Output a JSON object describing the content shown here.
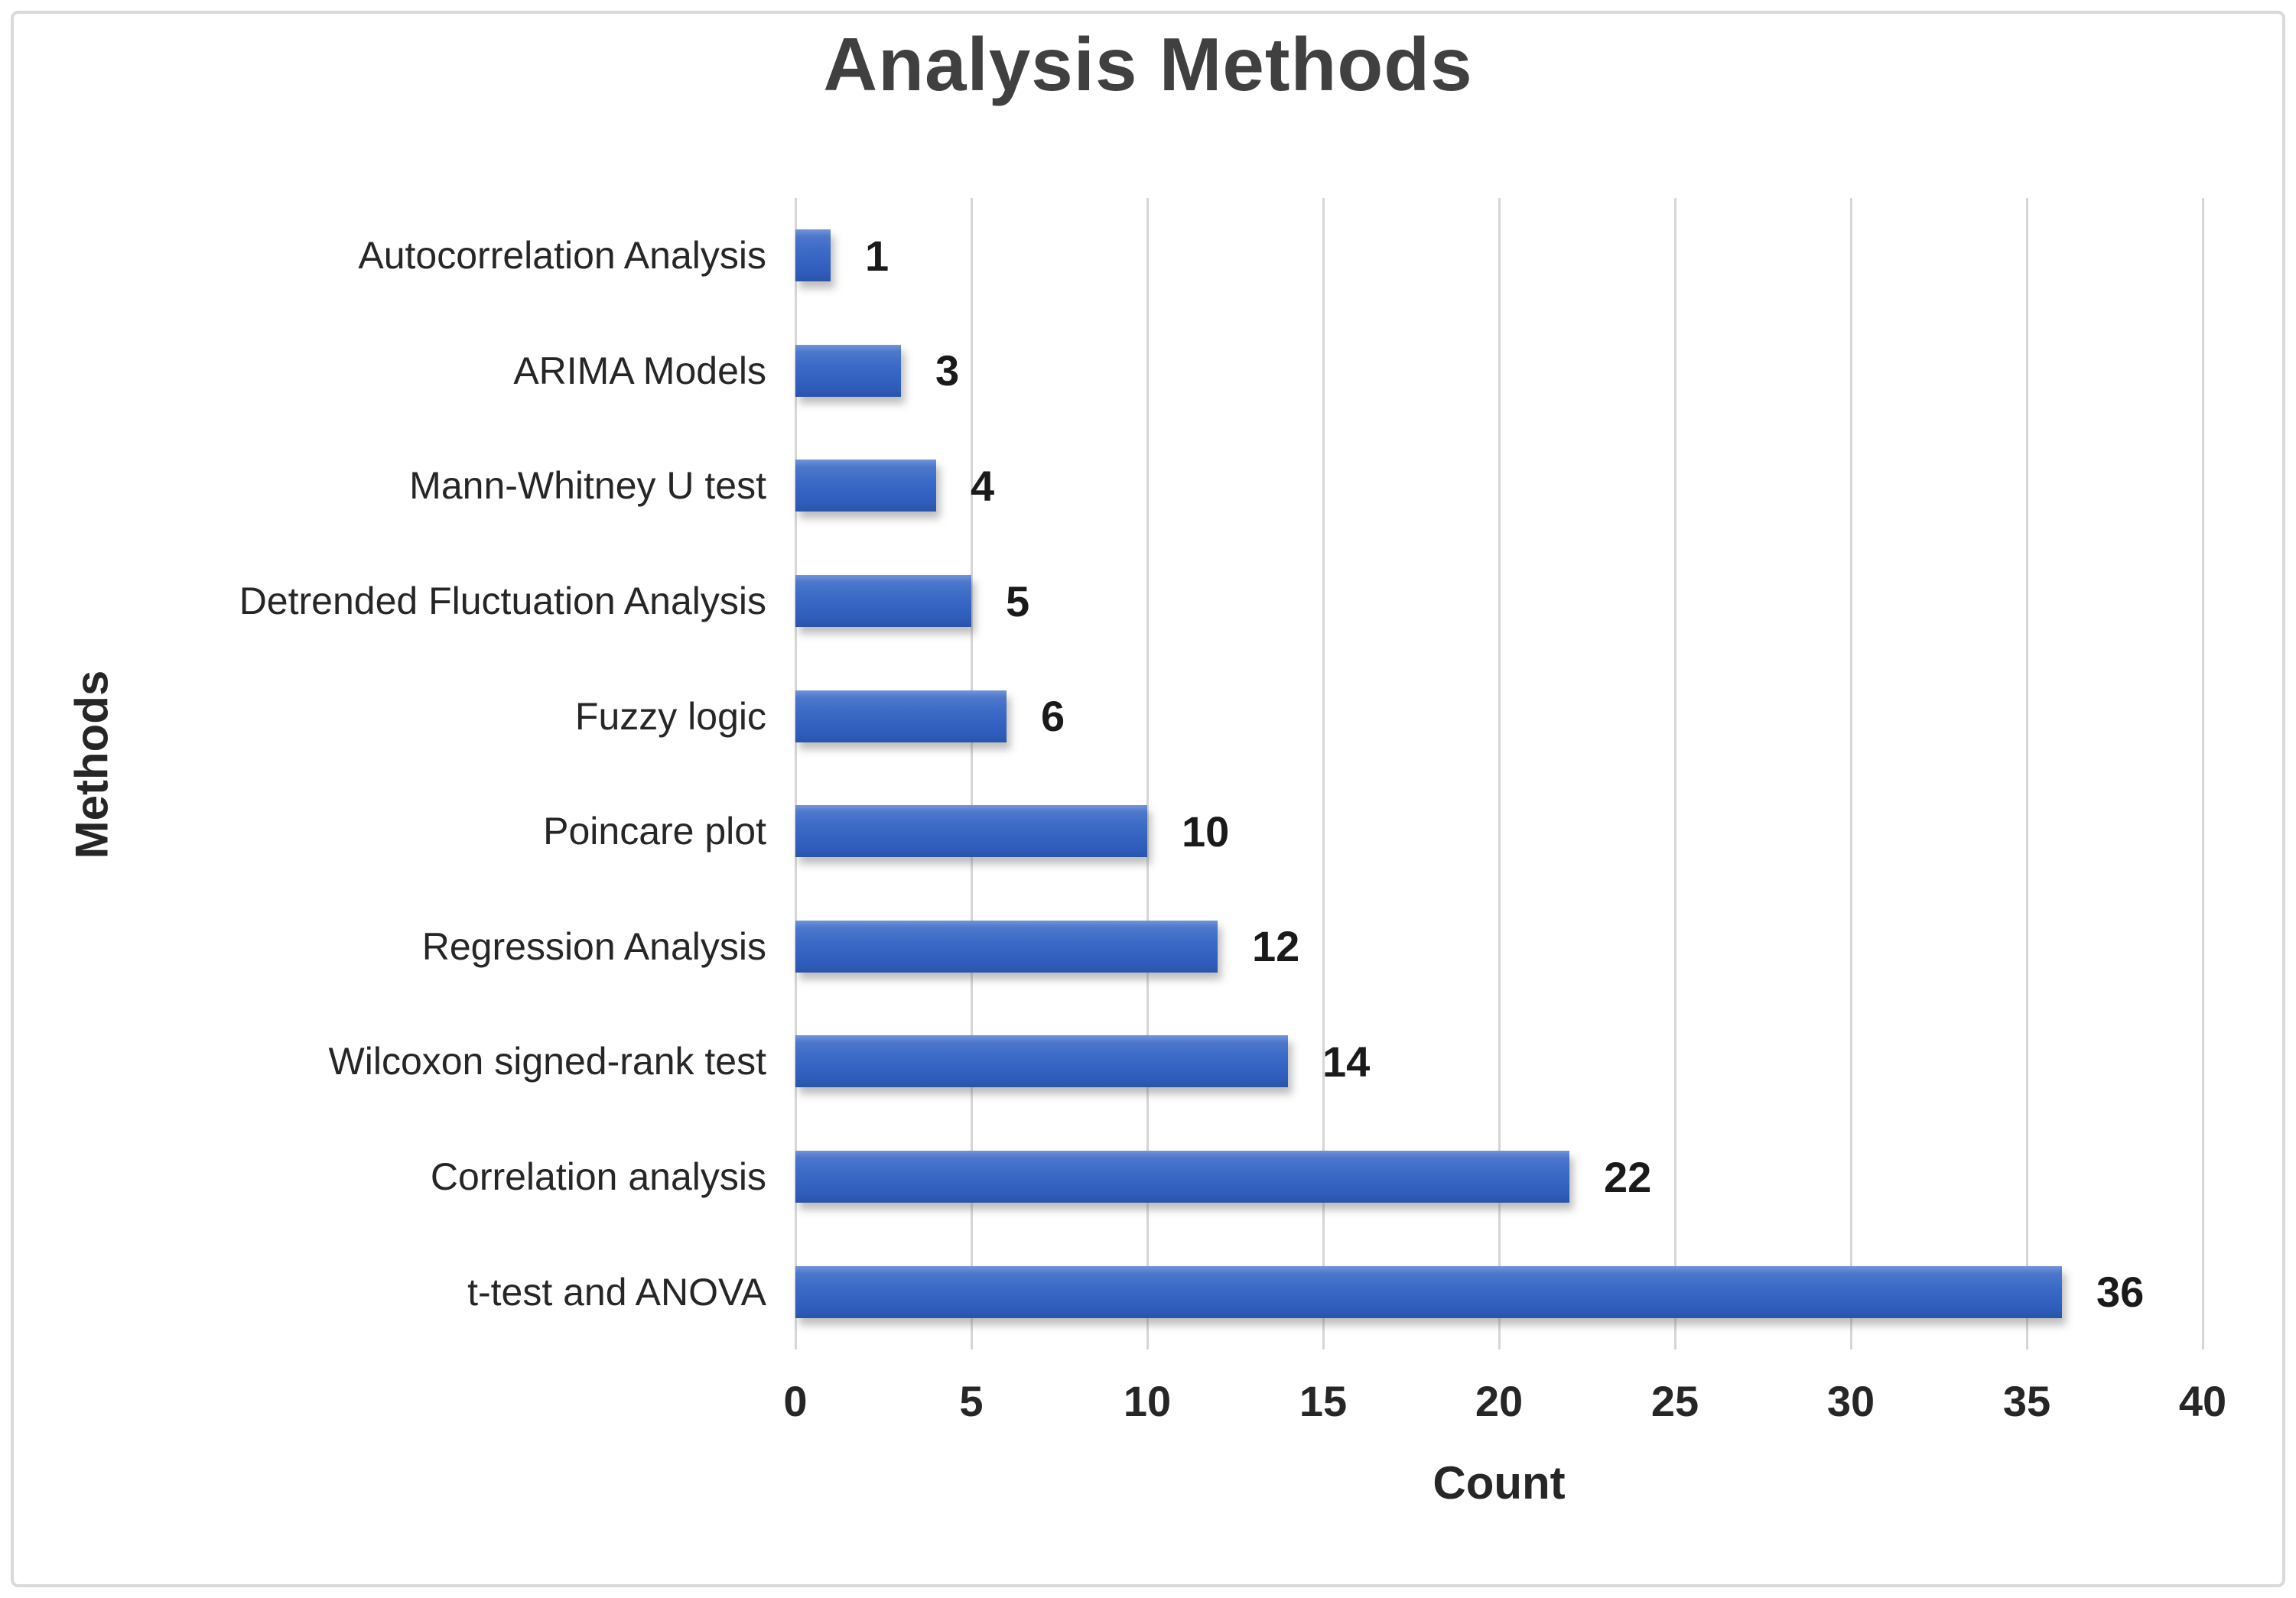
{
  "chart_data": {
    "type": "bar",
    "orientation": "horizontal",
    "title": "Analysis Methods",
    "xlabel": "Count",
    "ylabel": "Methods",
    "categories": [
      "Autocorrelation Analysis",
      "ARIMA Models",
      "Mann-Whitney U test",
      "Detrended Fluctuation Analysis",
      "Fuzzy logic",
      "Poincare plot",
      "Regression Analysis",
      "Wilcoxon signed-rank test",
      "Correlation analysis",
      "t-test and ANOVA"
    ],
    "values": [
      1,
      3,
      4,
      5,
      6,
      10,
      12,
      14,
      22,
      36
    ],
    "data_labels": [
      "1",
      "3",
      "4",
      "5",
      "6",
      "10",
      "12",
      "14",
      "22",
      "36"
    ],
    "xlim": [
      0,
      40
    ],
    "xticks": [
      0,
      5,
      10,
      15,
      20,
      25,
      30,
      35,
      40
    ],
    "grid": "vertical-gridlines",
    "legend": "none",
    "colors": {
      "bar_fill": "#4472C4",
      "bar_gradient_top": "#7394d9",
      "bar_gradient_bottom": "#2a54a9",
      "gridline": "#d6d6d6",
      "frame_border": "#d9d9d9",
      "title_text": "#404040",
      "axis_text": "#262626",
      "data_label_text": "#1a1a1a",
      "background": "#ffffff"
    }
  }
}
